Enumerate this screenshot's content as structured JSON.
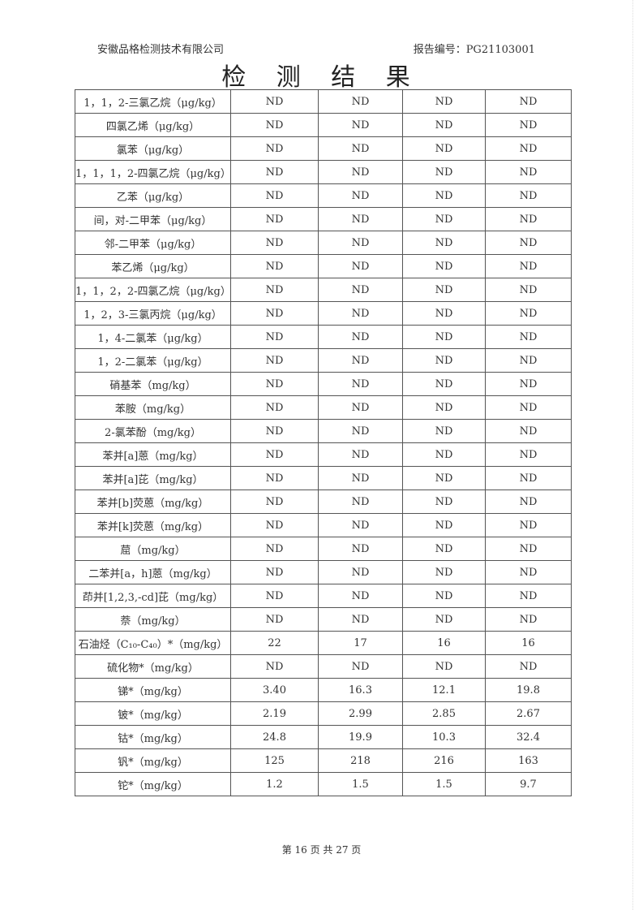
{
  "header": {
    "company": "安徽品格检测技术有限公司",
    "report_no": "报告编号：PG21103001"
  },
  "title": "检 测 结 果",
  "rows": [
    [
      "1，1，2-三氯乙烷（μg/kg）",
      "ND",
      "ND",
      "ND",
      "ND"
    ],
    [
      "四氯乙烯（μg/kg）",
      "ND",
      "ND",
      "ND",
      "ND"
    ],
    [
      "氯苯（μg/kg）",
      "ND",
      "ND",
      "ND",
      "ND"
    ],
    [
      "1，1，1，2-四氯乙烷（μg/kg）",
      "ND",
      "ND",
      "ND",
      "ND"
    ],
    [
      "乙苯（μg/kg）",
      "ND",
      "ND",
      "ND",
      "ND"
    ],
    [
      "间，对-二甲苯（μg/kg）",
      "ND",
      "ND",
      "ND",
      "ND"
    ],
    [
      "邻-二甲苯（μg/kg）",
      "ND",
      "ND",
      "ND",
      "ND"
    ],
    [
      "苯乙烯（μg/kg）",
      "ND",
      "ND",
      "ND",
      "ND"
    ],
    [
      "1，1，2，2-四氯乙烷（μg/kg）",
      "ND",
      "ND",
      "ND",
      "ND"
    ],
    [
      "1，2，3-三氯丙烷（μg/kg）",
      "ND",
      "ND",
      "ND",
      "ND"
    ],
    [
      "1，4-二氯苯（μg/kg）",
      "ND",
      "ND",
      "ND",
      "ND"
    ],
    [
      "1，2-二氯苯（μg/kg）",
      "ND",
      "ND",
      "ND",
      "ND"
    ],
    [
      "硝基苯（mg/kg）",
      "ND",
      "ND",
      "ND",
      "ND"
    ],
    [
      "苯胺（mg/kg）",
      "ND",
      "ND",
      "ND",
      "ND"
    ],
    [
      "2-氯苯酚（mg/kg）",
      "ND",
      "ND",
      "ND",
      "ND"
    ],
    [
      "苯并[a]蒽（mg/kg）",
      "ND",
      "ND",
      "ND",
      "ND"
    ],
    [
      "苯并[a]芘（mg/kg）",
      "ND",
      "ND",
      "ND",
      "ND"
    ],
    [
      "苯并[b]荧蒽（mg/kg）",
      "ND",
      "ND",
      "ND",
      "ND"
    ],
    [
      "苯并[k]荧蒽（mg/kg）",
      "ND",
      "ND",
      "ND",
      "ND"
    ],
    [
      "䓛（mg/kg）",
      "ND",
      "ND",
      "ND",
      "ND"
    ],
    [
      "二苯并[a，h]蒽（mg/kg）",
      "ND",
      "ND",
      "ND",
      "ND"
    ],
    [
      "茚并[1,2,3,-cd]芘（mg/kg）",
      "ND",
      "ND",
      "ND",
      "ND"
    ],
    [
      "萘（mg/kg）",
      "ND",
      "ND",
      "ND",
      "ND"
    ],
    [
      "石油烃（C₁₀-C₄₀）*（mg/kg）",
      "22",
      "17",
      "16",
      "16"
    ],
    [
      "硫化物*（mg/kg）",
      "ND",
      "ND",
      "ND",
      "ND"
    ],
    [
      "锑*（mg/kg）",
      "3.40",
      "16.3",
      "12.1",
      "19.8"
    ],
    [
      "铍*（mg/kg）",
      "2.19",
      "2.99",
      "2.85",
      "2.67"
    ],
    [
      "钴*（mg/kg）",
      "24.8",
      "19.9",
      "10.3",
      "32.4"
    ],
    [
      "钒*（mg/kg）",
      "125",
      "218",
      "216",
      "163"
    ],
    [
      "铊*（mg/kg）",
      "1.2",
      "1.5",
      "1.5",
      "9.7"
    ]
  ],
  "footer": "第 16 页 共 27 页"
}
